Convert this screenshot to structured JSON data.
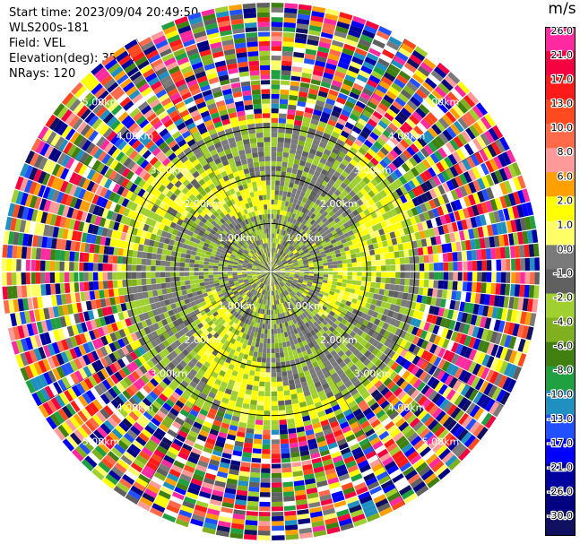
{
  "header": {
    "start_time": "Start time: 2023/09/04 20:49:50",
    "instrument": "WLS200s-181",
    "field": "Field: VEL",
    "elevation": "Elevation(deg): 35.30",
    "nrays": "NRays: 120"
  },
  "colorbar": {
    "unit": "m/s",
    "ticks": [
      "26.0",
      "21.0",
      "17.0",
      "13.0",
      "10.0",
      "8.0",
      "6.0",
      "2.0",
      "1.0",
      "0.0",
      "-1.0",
      "-2.0",
      "-4.0",
      "-6.0",
      "-8.0",
      "-10.0",
      "-13.0",
      "-17.0",
      "-21.0",
      "-26.0",
      "-30.0"
    ],
    "colors": [
      "#ff2aa0",
      "#f50040",
      "#ff1a1a",
      "#ff4a20",
      "#ff6a4a",
      "#ff9a9a",
      "#ffa000",
      "#ffff00",
      "#ffff66",
      "#7a7a7a",
      "#606060",
      "#a0d030",
      "#80b020",
      "#408010",
      "#20a040",
      "#2090c0",
      "#2050ff",
      "#0000ff",
      "#0000a0",
      "#000080",
      "#101060"
    ]
  },
  "chart_data": {
    "type": "heatmap",
    "projection": "polar (PPI)",
    "field": "VEL",
    "unit": "m/s",
    "nrays": 120,
    "elevation_deg": 35.3,
    "range_ring_labels_km": [
      "1.00km",
      "2.00km",
      "3.00km",
      "4.00km",
      "5.00km"
    ],
    "range_rings_km": [
      1.0,
      2.0,
      3.0,
      4.0,
      5.0
    ],
    "max_range_km": 5.6,
    "pattern": [
      {
        "range_km": [
          0.0,
          1.2
        ],
        "dominant_values": [
          0.0,
          -2.0,
          -4.0,
          2.0
        ]
      },
      {
        "range_km": [
          1.2,
          3.0
        ],
        "dominant_values": [
          0.0,
          -2.0,
          2.0
        ]
      },
      {
        "range_km": [
          3.0,
          5.6
        ],
        "dominant_values": "noise across full color scale"
      }
    ]
  }
}
